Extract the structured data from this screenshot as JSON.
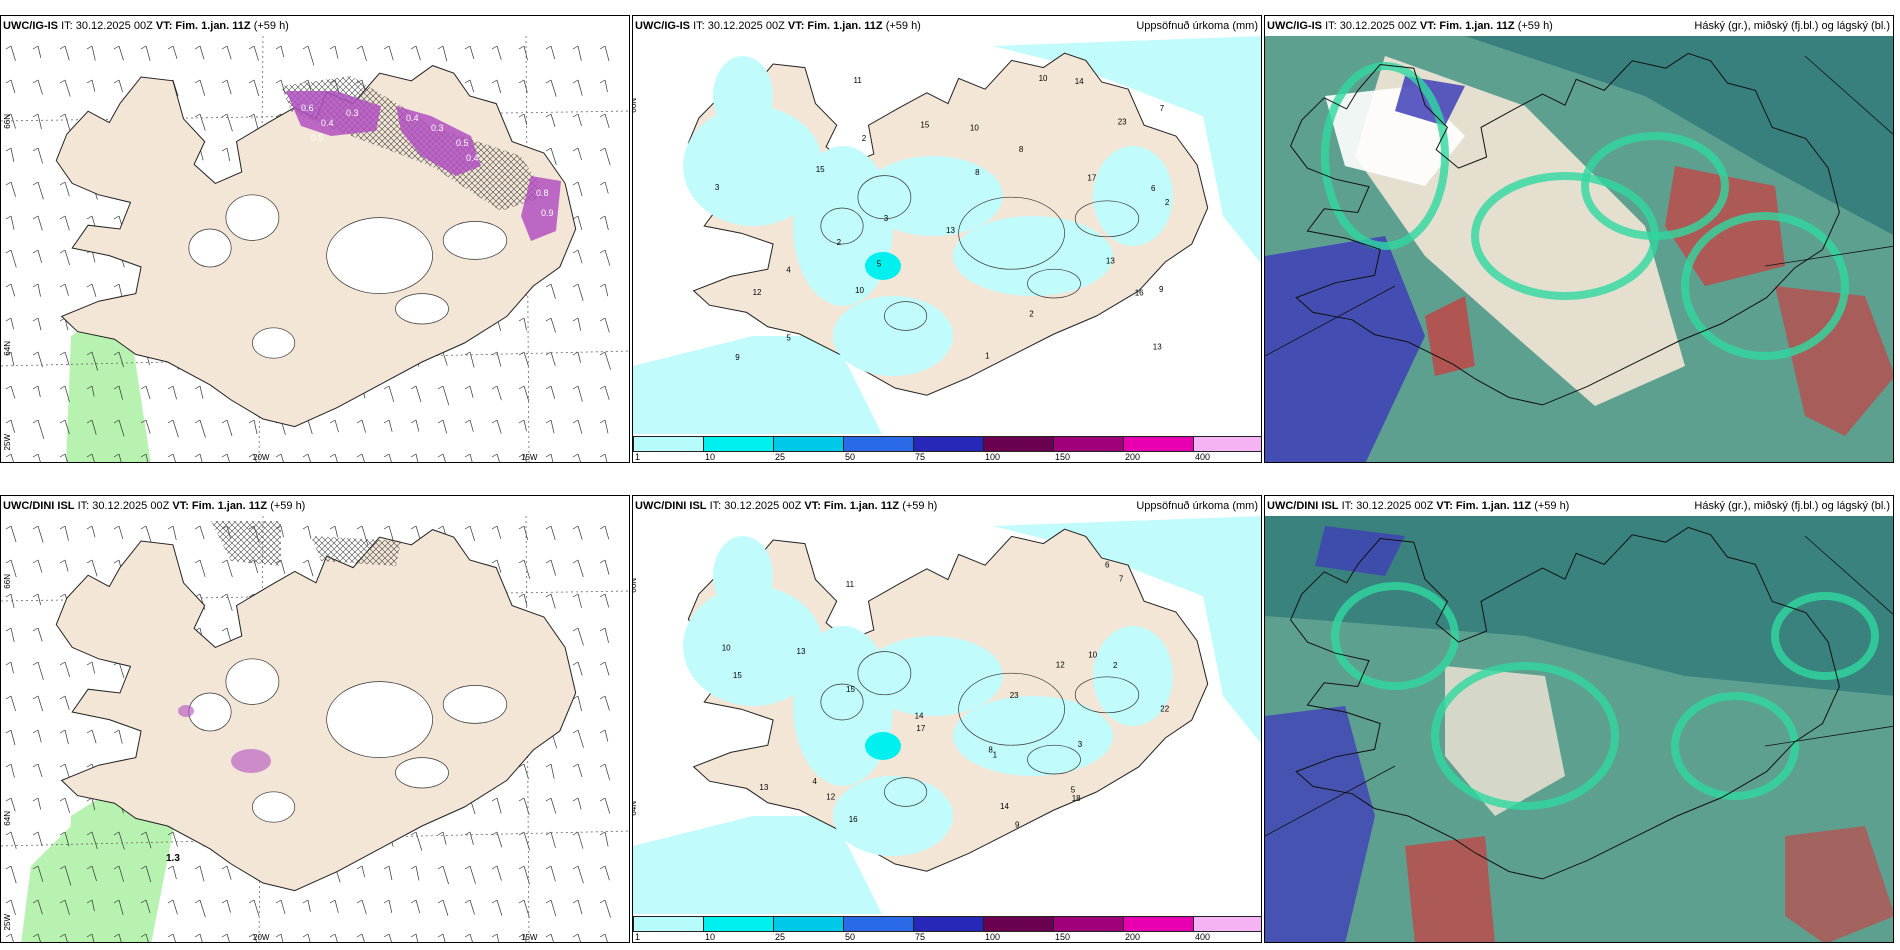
{
  "rows": [
    {
      "model": "UWC/IG-IS",
      "panels": [
        {
          "type": "wind-snow",
          "init": "IT: 30.12.2025 00Z",
          "valid": "VT: Fim. 1.jan. 11Z",
          "lead": "(+59 h)",
          "right": ""
        },
        {
          "type": "precip",
          "init": "IT: 30.12.2025 00Z",
          "valid": "VT: Fim. 1.jan. 11Z",
          "lead": "(+59 h)",
          "right": "Uppsöfnuð úrkoma (mm)"
        },
        {
          "type": "cloud",
          "init": "IT: 30.12.2025 00Z",
          "valid": "VT: Fim. 1.jan. 11Z",
          "lead": "(+59 h)",
          "right": "Háský (gr.), miðský (fj.bl.) og lágský (bl.)"
        }
      ]
    },
    {
      "model": "UWC/DINI ISL",
      "panels": [
        {
          "type": "wind-snow",
          "init": "IT: 30.12.2025 00Z",
          "valid": "VT: Fim. 1.jan. 11Z",
          "lead": "(+59 h)",
          "right": ""
        },
        {
          "type": "precip",
          "init": "IT: 30.12.2025 00Z",
          "valid": "VT: Fim. 1.jan. 11Z",
          "lead": "(+59 h)",
          "right": "Uppsöfnuð úrkoma (mm)"
        },
        {
          "type": "cloud",
          "init": "IT: 30.12.2025 00Z",
          "valid": "VT: Fim. 1.jan. 11Z",
          "lead": "(+59 h)",
          "right": "Háský (gr.), miðský (fj.bl.) og lágský (bl.)"
        }
      ]
    }
  ],
  "grid_labels": {
    "lat66": "66N",
    "lat64": "64N",
    "lon25": "25W",
    "lon20": "20W",
    "lon15": "15W"
  },
  "precip_legend": {
    "thresholds": [
      "1",
      "10",
      "25",
      "50",
      "75",
      "100",
      "150",
      "200",
      "400"
    ],
    "colors": [
      "#b8fbfb",
      "#00f0f0",
      "#00c8e8",
      "#2a6ae8",
      "#2828b8",
      "#6a0050",
      "#a0007a",
      "#e800b0",
      "#f4b4f4"
    ]
  },
  "precip_labels_top": [
    "2",
    "6",
    "8",
    "2",
    "3",
    "9",
    "5",
    "10",
    "16",
    "23",
    "15",
    "13",
    "17",
    "10",
    "12",
    "13",
    "2",
    "3",
    "11",
    "15",
    "13",
    "10",
    "5",
    "4",
    "8",
    "14",
    "9",
    "2",
    "1",
    "7"
  ],
  "precip_labels_bottom": [
    "9",
    "11",
    "4",
    "13",
    "10",
    "14",
    "22",
    "15",
    "17",
    "12",
    "13",
    "10",
    "14",
    "8",
    "12",
    "6",
    "15",
    "7",
    "3",
    "2",
    "5",
    "1",
    "16",
    "18",
    "23"
  ],
  "snow_labels_top": [
    "0.6",
    "0.4",
    "0.3",
    "0.5",
    "0.4",
    "0.3",
    "0.5",
    "0.4",
    "0.8",
    "0.9"
  ],
  "snow_labels_bottom": [
    "1.3"
  ],
  "colors": {
    "land": "#f3e6d6",
    "light_precip": "#c2fbfb",
    "snow_purple": "#b050c0",
    "cloud_dark": "#2e7878",
    "cloud_mid": "#5ea090",
    "cloud_green": "#30d8a0",
    "cloud_blue": "#4040b8",
    "cloud_red": "#c04848"
  }
}
